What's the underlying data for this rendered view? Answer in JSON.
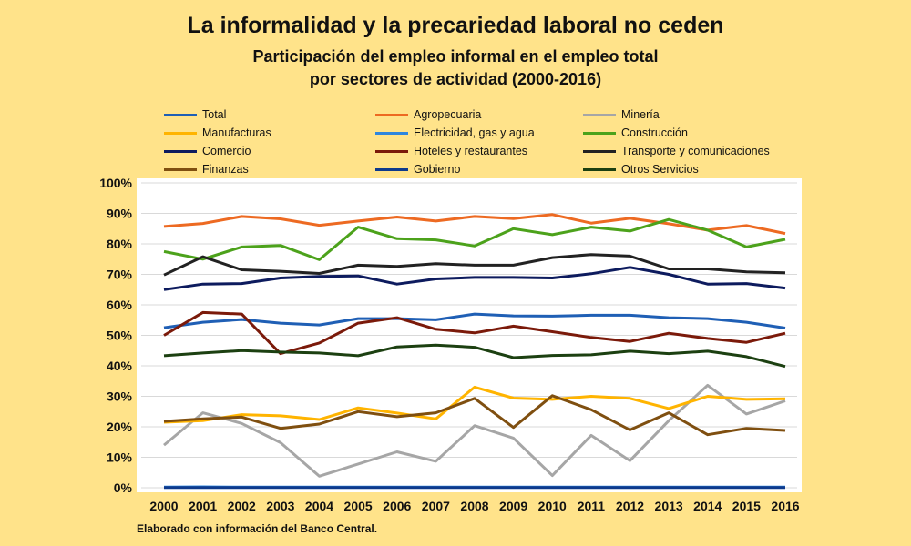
{
  "title": "La informalidad y la precariedad laboral no ceden",
  "subtitle_line1": "Participación del empleo informal en el empleo total",
  "subtitle_line2": "por sectores de actividad (2000-2016)",
  "footnote": "Elaborado con información del Banco Central.",
  "chart_data": {
    "type": "line",
    "title": "La informalidad y la precariedad laboral no ceden",
    "subtitle": "Participación del empleo informal en el empleo total por sectores de actividad (2000-2016)",
    "xlabel": "",
    "ylabel": "",
    "x": [
      "2000",
      "2001",
      "2002",
      "2003",
      "2004",
      "2005",
      "2006",
      "2007",
      "2008",
      "2009",
      "2010",
      "2011",
      "2012",
      "2013",
      "2014",
      "2015",
      "2016"
    ],
    "ylim": [
      0,
      100
    ],
    "yticks": [
      "0%",
      "10%",
      "20%",
      "30%",
      "40%",
      "50%",
      "60%",
      "70%",
      "80%",
      "90%",
      "100%"
    ],
    "grid": true,
    "legend_position": "top",
    "series": [
      {
        "name": "Total",
        "color": "#1F5FB5",
        "values": [
          52.5,
          54.3,
          55.2,
          54.0,
          53.4,
          55.5,
          55.5,
          55.1,
          57.0,
          56.4,
          56.3,
          56.6,
          56.6,
          55.8,
          55.5,
          54.3,
          52.4
        ]
      },
      {
        "name": "Agropecuaria",
        "color": "#ED6A22",
        "values": [
          85.7,
          86.7,
          89.0,
          88.2,
          86.1,
          87.5,
          88.8,
          87.5,
          89.0,
          88.3,
          89.6,
          86.8,
          88.4,
          86.6,
          84.5,
          86.0,
          83.4
        ]
      },
      {
        "name": "Minería",
        "color": "#A6A6A6",
        "values": [
          14.0,
          24.6,
          21.1,
          14.8,
          3.8,
          7.8,
          11.8,
          8.7,
          20.4,
          16.3,
          4.0,
          17.2,
          8.9,
          22.0,
          33.6,
          24.2,
          28.5
        ]
      },
      {
        "name": "Manufacturas",
        "color": "#FFB400",
        "values": [
          21.5,
          22.0,
          24.0,
          23.6,
          22.4,
          26.2,
          24.5,
          22.6,
          33.0,
          29.4,
          29.0,
          30.0,
          29.3,
          26.0,
          30.0,
          29.0,
          29.2
        ]
      },
      {
        "name": "Electricidad, gas y agua",
        "color": "#2E86DE",
        "values": [
          0.2,
          0.3,
          0.2,
          0.2,
          0.2,
          0.2,
          0.2,
          0.2,
          0.2,
          0.2,
          0.2,
          0.2,
          0.2,
          0.2,
          0.2,
          0.2,
          0.2
        ]
      },
      {
        "name": "Construcción",
        "color": "#4CA21B",
        "values": [
          77.5,
          75.0,
          79.0,
          79.5,
          74.8,
          85.5,
          81.7,
          81.3,
          79.3,
          85.0,
          83.0,
          85.5,
          84.2,
          88.0,
          84.5,
          79.0,
          81.5
        ]
      },
      {
        "name": "Comercio",
        "color": "#0D1B5E",
        "values": [
          65.0,
          66.8,
          67.0,
          68.8,
          69.3,
          69.5,
          66.8,
          68.5,
          69.0,
          69.0,
          68.8,
          70.2,
          72.3,
          70.0,
          66.8,
          67.0,
          65.5
        ]
      },
      {
        "name": "Hoteles y restaurantes",
        "color": "#7B1A0A",
        "values": [
          50.0,
          57.5,
          57.0,
          44.0,
          47.5,
          54.0,
          55.8,
          52.0,
          50.8,
          53.0,
          51.2,
          49.3,
          48.0,
          50.7,
          49.0,
          47.7,
          50.7
        ]
      },
      {
        "name": "Transporte y comunicaciones",
        "color": "#222222",
        "values": [
          69.8,
          75.8,
          71.5,
          71.0,
          70.3,
          73.0,
          72.6,
          73.5,
          73.0,
          73.0,
          75.5,
          76.5,
          76.0,
          71.8,
          71.8,
          70.8,
          70.5
        ]
      },
      {
        "name": "Finanzas",
        "color": "#7F4F10",
        "values": [
          21.8,
          22.6,
          23.2,
          19.5,
          20.9,
          25.0,
          23.3,
          24.6,
          29.3,
          19.8,
          30.2,
          25.6,
          19.0,
          24.6,
          17.4,
          19.5,
          18.8
        ]
      },
      {
        "name": "Gobierno",
        "color": "#0E3A8C",
        "values": [
          0.1,
          0.1,
          0.1,
          0.1,
          0.1,
          0.1,
          0.1,
          0.1,
          0.1,
          0.1,
          0.1,
          0.1,
          0.1,
          0.1,
          0.1,
          0.1,
          0.1
        ]
      },
      {
        "name": "Otros Servicios",
        "color": "#1C4011",
        "values": [
          43.3,
          44.2,
          45.0,
          44.5,
          44.2,
          43.3,
          46.2,
          46.8,
          46.1,
          42.7,
          43.4,
          43.6,
          44.8,
          44.0,
          44.8,
          43.0,
          39.8
        ]
      }
    ]
  }
}
